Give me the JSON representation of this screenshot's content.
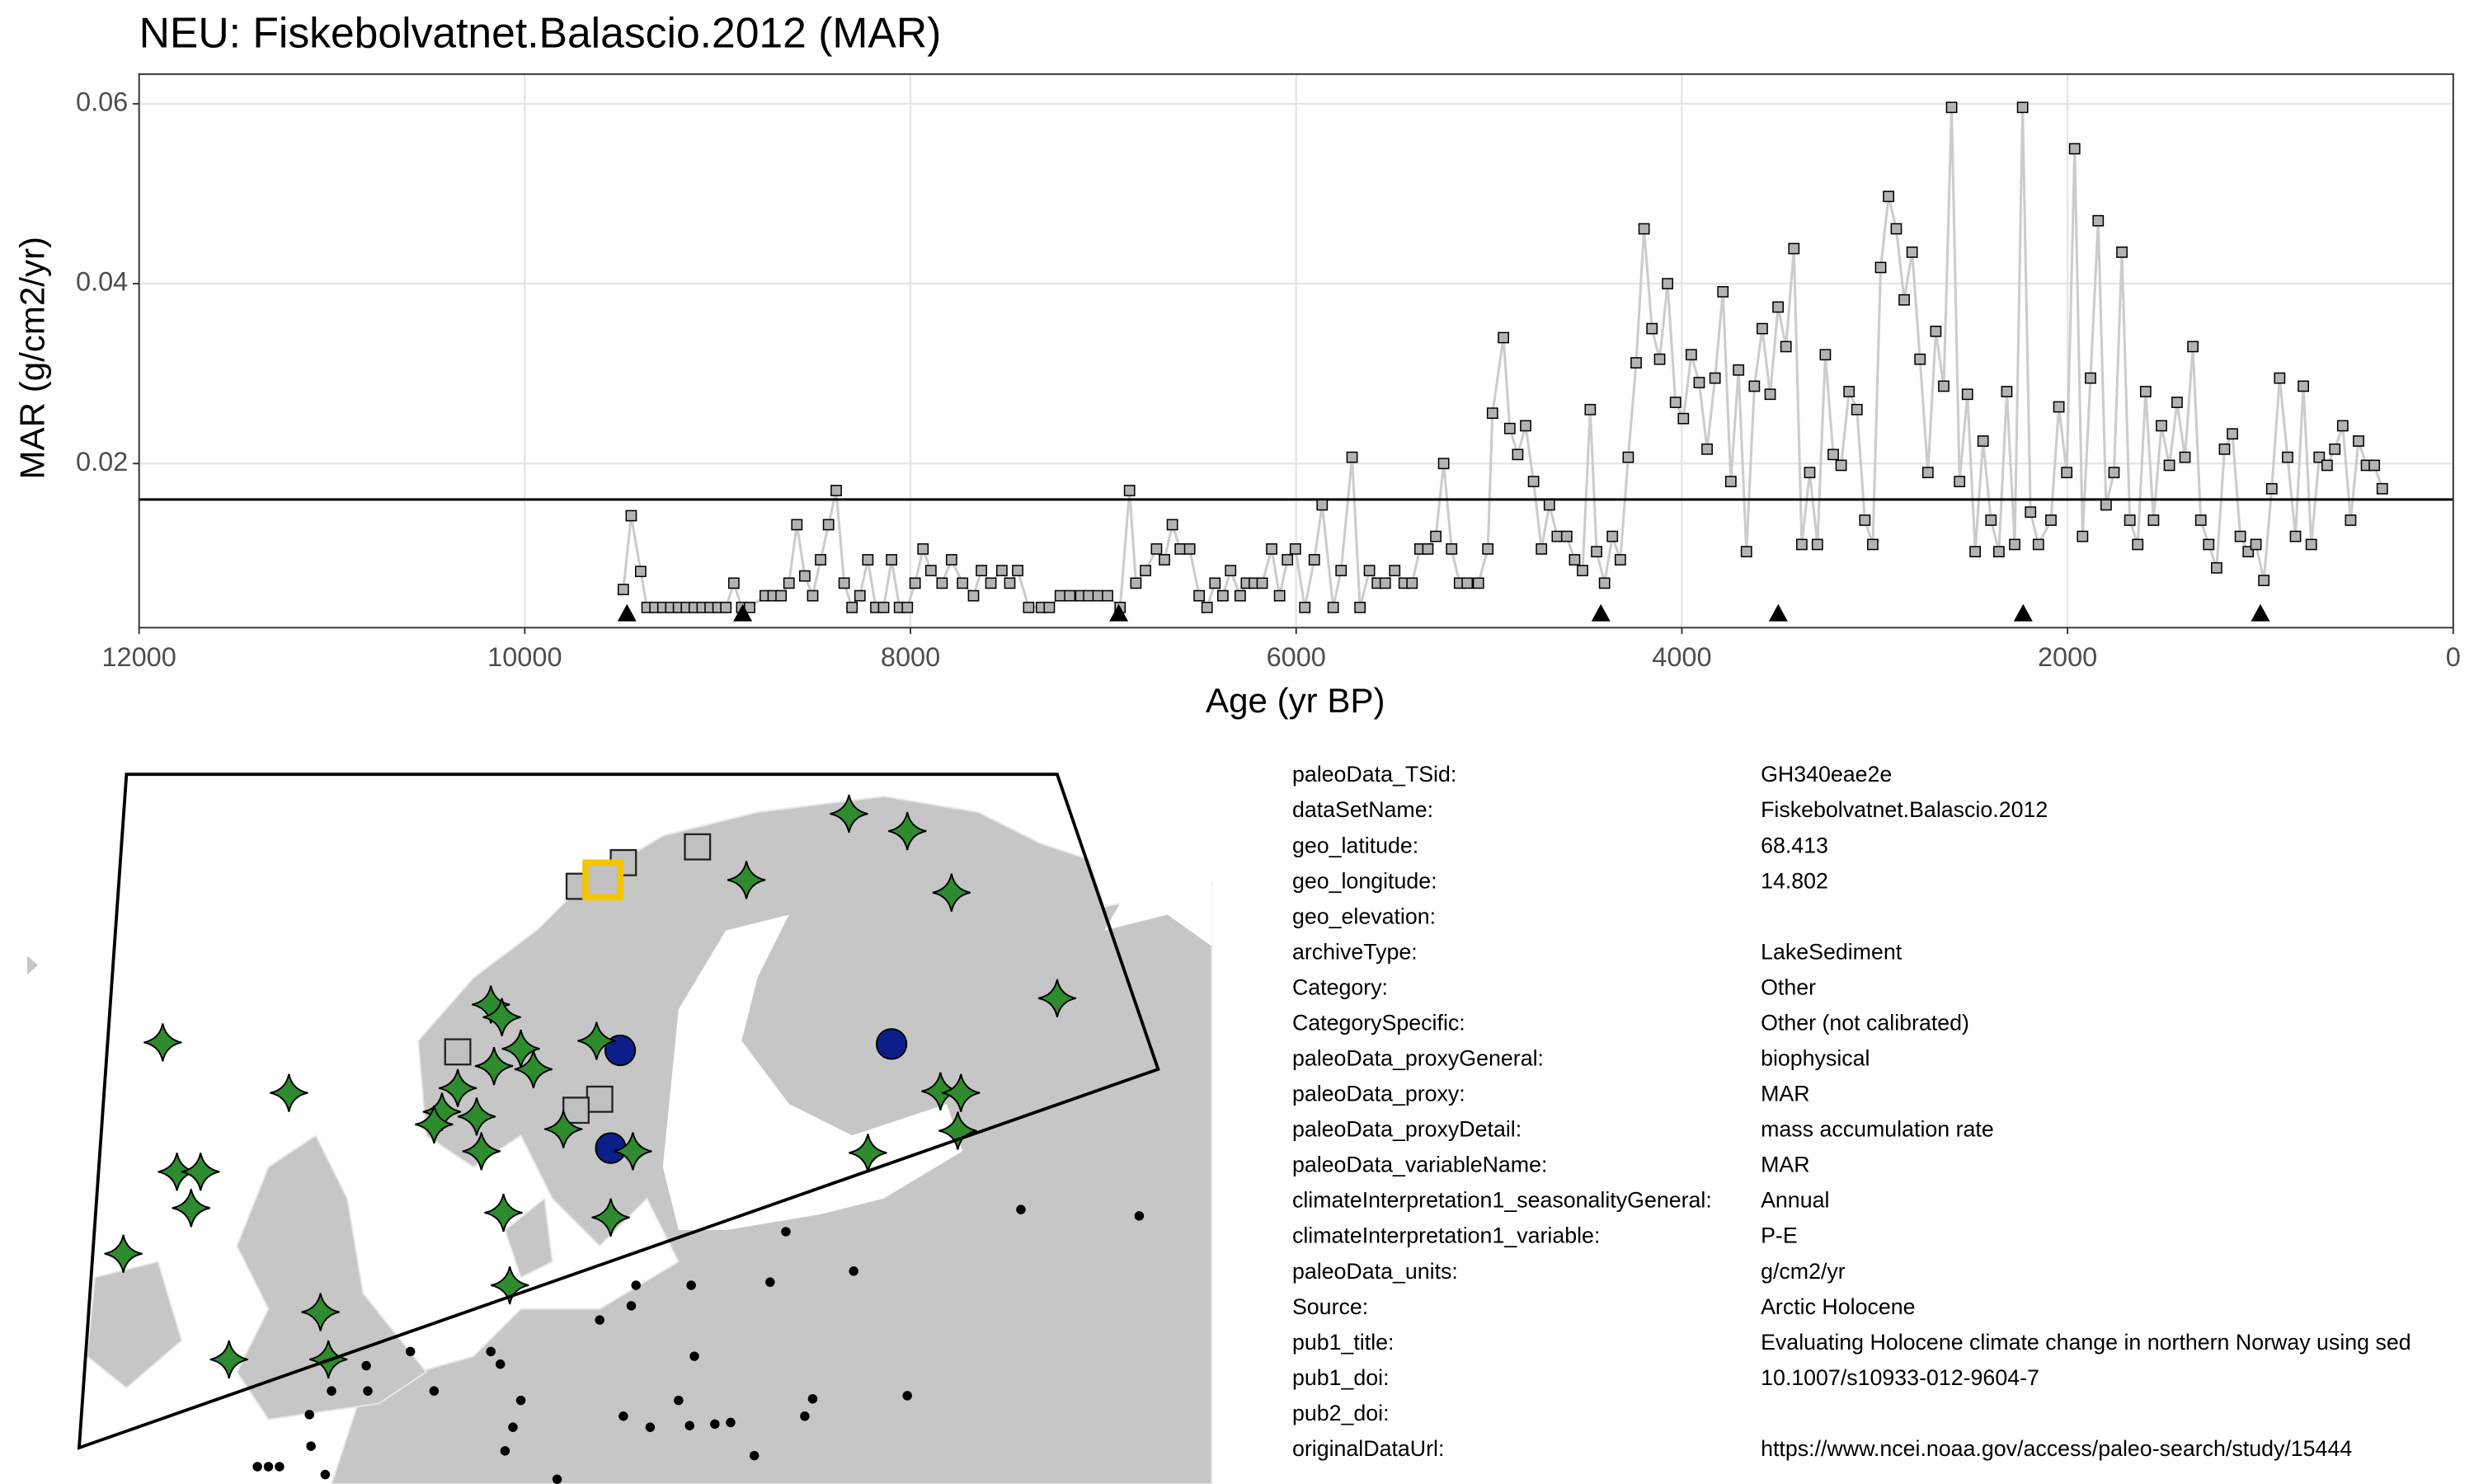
{
  "chart_data": {
    "type": "line",
    "title": "NEU: Fiskebolvatnet.Balascio.2012 (MAR)",
    "x_label": "Age (yr BP)",
    "y_label": "MAR (g/cm2/yr)",
    "xlim": [
      12000,
      0
    ],
    "xticks": [
      12000,
      10000,
      8000,
      6000,
      4000,
      2000,
      0
    ],
    "ylim": [
      0.00175,
      0.0633
    ],
    "yticks": [
      0.02,
      0.04,
      0.06
    ],
    "grid": true,
    "line_color": "#cccccc",
    "point_color": "#b3b3b3",
    "hline": 0.016,
    "age_markers": [
      9470,
      8870,
      6920,
      4420,
      3500,
      2230,
      1000
    ],
    "x": [
      9489,
      9448,
      9399,
      9366,
      9325,
      9284,
      9243,
      9203,
      9162,
      9121,
      9080,
      9039,
      8998,
      8957,
      8916,
      8875,
      8834,
      8753,
      8712,
      8671,
      8630,
      8589,
      8548,
      8507,
      8466,
      8425,
      8385,
      8344,
      8303,
      8262,
      8221,
      8180,
      8139,
      8098,
      8057,
      8016,
      7976,
      7935,
      7894,
      7836,
      7787,
      7730,
      7673,
      7632,
      7583,
      7526,
      7485,
      7444,
      7387,
      7321,
      7280,
      7223,
      7174,
      7117,
      7076,
      7027,
      6978,
      6913,
      6864,
      6831,
      6781,
      6724,
      6683,
      6642,
      6601,
      6552,
      6503,
      6462,
      6421,
      6380,
      6340,
      6290,
      6258,
      6217,
      6176,
      6127,
      6086,
      6045,
      6004,
      5955,
      5906,
      5865,
      5808,
      5767,
      5710,
      5669,
      5620,
      5579,
      5538,
      5489,
      5440,
      5399,
      5358,
      5317,
      5276,
      5235,
      5194,
      5153,
      5113,
      5055,
      5006,
      4982,
      4925,
      4892,
      4851,
      4810,
      4769,
      4728,
      4687,
      4646,
      4597,
      4556,
      4515,
      4475,
      4442,
      4401,
      4360,
      4319,
      4278,
      4237,
      4196,
      4155,
      4115,
      4074,
      4033,
      3992,
      3951,
      3910,
      3869,
      3828,
      3787,
      3746,
      3706,
      3665,
      3624,
      3583,
      3542,
      3501,
      3460,
      3419,
      3378,
      3337,
      3297,
      3256,
      3215,
      3174,
      3133,
      3092,
      3051,
      3010,
      2969,
      2928,
      2888,
      2847,
      2806,
      2765,
      2724,
      2683,
      2642,
      2601,
      2560,
      2519,
      2479,
      2438,
      2397,
      2356,
      2315,
      2274,
      2233,
      2192,
      2151,
      2086,
      2045,
      2004,
      1963,
      1922,
      1881,
      1841,
      1800,
      1759,
      1718,
      1677,
      1636,
      1595,
      1554,
      1513,
      1472,
      1432,
      1391,
      1350,
      1309,
      1268,
      1227,
      1186,
      1145,
      1104,
      1063,
      1023,
      982,
      941,
      900,
      859,
      818,
      777,
      736,
      695,
      654,
      614,
      573,
      532,
      491,
      450,
      409,
      368
    ],
    "values": [
      0.006,
      0.0142,
      0.008,
      0.004,
      0.004,
      0.004,
      0.004,
      0.004,
      0.004,
      0.004,
      0.004,
      0.004,
      0.004,
      0.004,
      0.0067,
      0.004,
      0.004,
      0.0053,
      0.0053,
      0.0053,
      0.0067,
      0.0132,
      0.0075,
      0.0053,
      0.0093,
      0.0132,
      0.017,
      0.0067,
      0.004,
      0.0053,
      0.0093,
      0.004,
      0.004,
      0.0093,
      0.004,
      0.004,
      0.0067,
      0.0105,
      0.0081,
      0.0067,
      0.0093,
      0.0067,
      0.0053,
      0.0081,
      0.0067,
      0.0081,
      0.0067,
      0.0081,
      0.004,
      0.004,
      0.004,
      0.0053,
      0.0053,
      0.0053,
      0.0053,
      0.0053,
      0.0053,
      0.004,
      0.017,
      0.0067,
      0.0081,
      0.0105,
      0.0093,
      0.0132,
      0.0105,
      0.0105,
      0.0053,
      0.004,
      0.0067,
      0.0053,
      0.0081,
      0.0053,
      0.0067,
      0.0067,
      0.0067,
      0.0105,
      0.0053,
      0.0093,
      0.0105,
      0.004,
      0.0093,
      0.0154,
      0.004,
      0.0081,
      0.0207,
      0.004,
      0.0081,
      0.0067,
      0.0067,
      0.0081,
      0.0067,
      0.0067,
      0.0105,
      0.0105,
      0.0119,
      0.02,
      0.0105,
      0.0067,
      0.0067,
      0.0067,
      0.0105,
      0.0256,
      0.034,
      0.0239,
      0.021,
      0.0242,
      0.018,
      0.0105,
      0.0154,
      0.0119,
      0.0119,
      0.0093,
      0.0081,
      0.026,
      0.0102,
      0.0067,
      0.0119,
      0.0093,
      0.0207,
      0.0312,
      0.0461,
      0.035,
      0.0316,
      0.04,
      0.0268,
      0.025,
      0.0321,
      0.029,
      0.0216,
      0.0295,
      0.0391,
      0.018,
      0.0304,
      0.0102,
      0.0286,
      0.035,
      0.0277,
      0.0374,
      0.033,
      0.0439,
      0.011,
      0.019,
      0.011,
      0.0321,
      0.021,
      0.0198,
      0.028,
      0.026,
      0.0137,
      0.011,
      0.0418,
      0.0497,
      0.0461,
      0.0382,
      0.0435,
      0.0316,
      0.019,
      0.0347,
      0.0286,
      0.0596,
      0.018,
      0.0277,
      0.0102,
      0.0225,
      0.0137,
      0.0102,
      0.028,
      0.011,
      0.0596,
      0.0146,
      0.011,
      0.0137,
      0.0263,
      0.019,
      0.055,
      0.0119,
      0.0295,
      0.047,
      0.0154,
      0.019,
      0.0435,
      0.0137,
      0.011,
      0.028,
      0.0137,
      0.0242,
      0.0198,
      0.0268,
      0.0207,
      0.033,
      0.0137,
      0.011,
      0.0084,
      0.0216,
      0.0233,
      0.0119,
      0.0102,
      0.011,
      0.007,
      0.0172,
      0.0295,
      0.0207,
      0.0119,
      0.0286,
      0.011,
      0.0207,
      0.0198,
      0.0216,
      0.0242,
      0.0137,
      0.0225,
      0.0198,
      0.0198,
      0.0172
    ]
  },
  "metadata": {
    "rows": [
      [
        "paleoData_TSid:",
        "GH340eae2e"
      ],
      [
        "dataSetName:",
        "Fiskebolvatnet.Balascio.2012"
      ],
      [
        "geo_latitude:",
        "68.413"
      ],
      [
        "geo_longitude:",
        "14.802"
      ],
      [
        "geo_elevation:"
      ],
      [
        "archiveType:",
        "LakeSediment"
      ],
      [
        "Category:",
        "Other"
      ],
      [
        "CategorySpecific:",
        "Other (not calibrated)"
      ],
      [
        "paleoData_proxyGeneral:",
        "biophysical"
      ],
      [
        "paleoData_proxy:",
        "MAR"
      ],
      [
        "paleoData_proxyDetail:",
        "mass accumulation rate"
      ],
      [
        "paleoData_variableName:",
        "MAR"
      ],
      [
        "climateInterpretation1_seasonalityGeneral:",
        "Annual"
      ],
      [
        "climateInterpretation1_variable:",
        "P-E"
      ],
      [
        "paleoData_units:",
        "g/cm2/yr"
      ],
      [
        "Source:",
        "Arctic Holocene"
      ],
      [
        "pub1_title:",
        "Evaluating Holocene climate change in northern Norway using sed"
      ],
      [
        "pub1_doi:",
        "10.1007/s10933-012-9604-7"
      ],
      [
        "pub2_doi:"
      ],
      [
        "originalDataUrl:",
        "https://www.ncei.noaa.gov/access/paleo-search/study/15444"
      ]
    ]
  }
}
